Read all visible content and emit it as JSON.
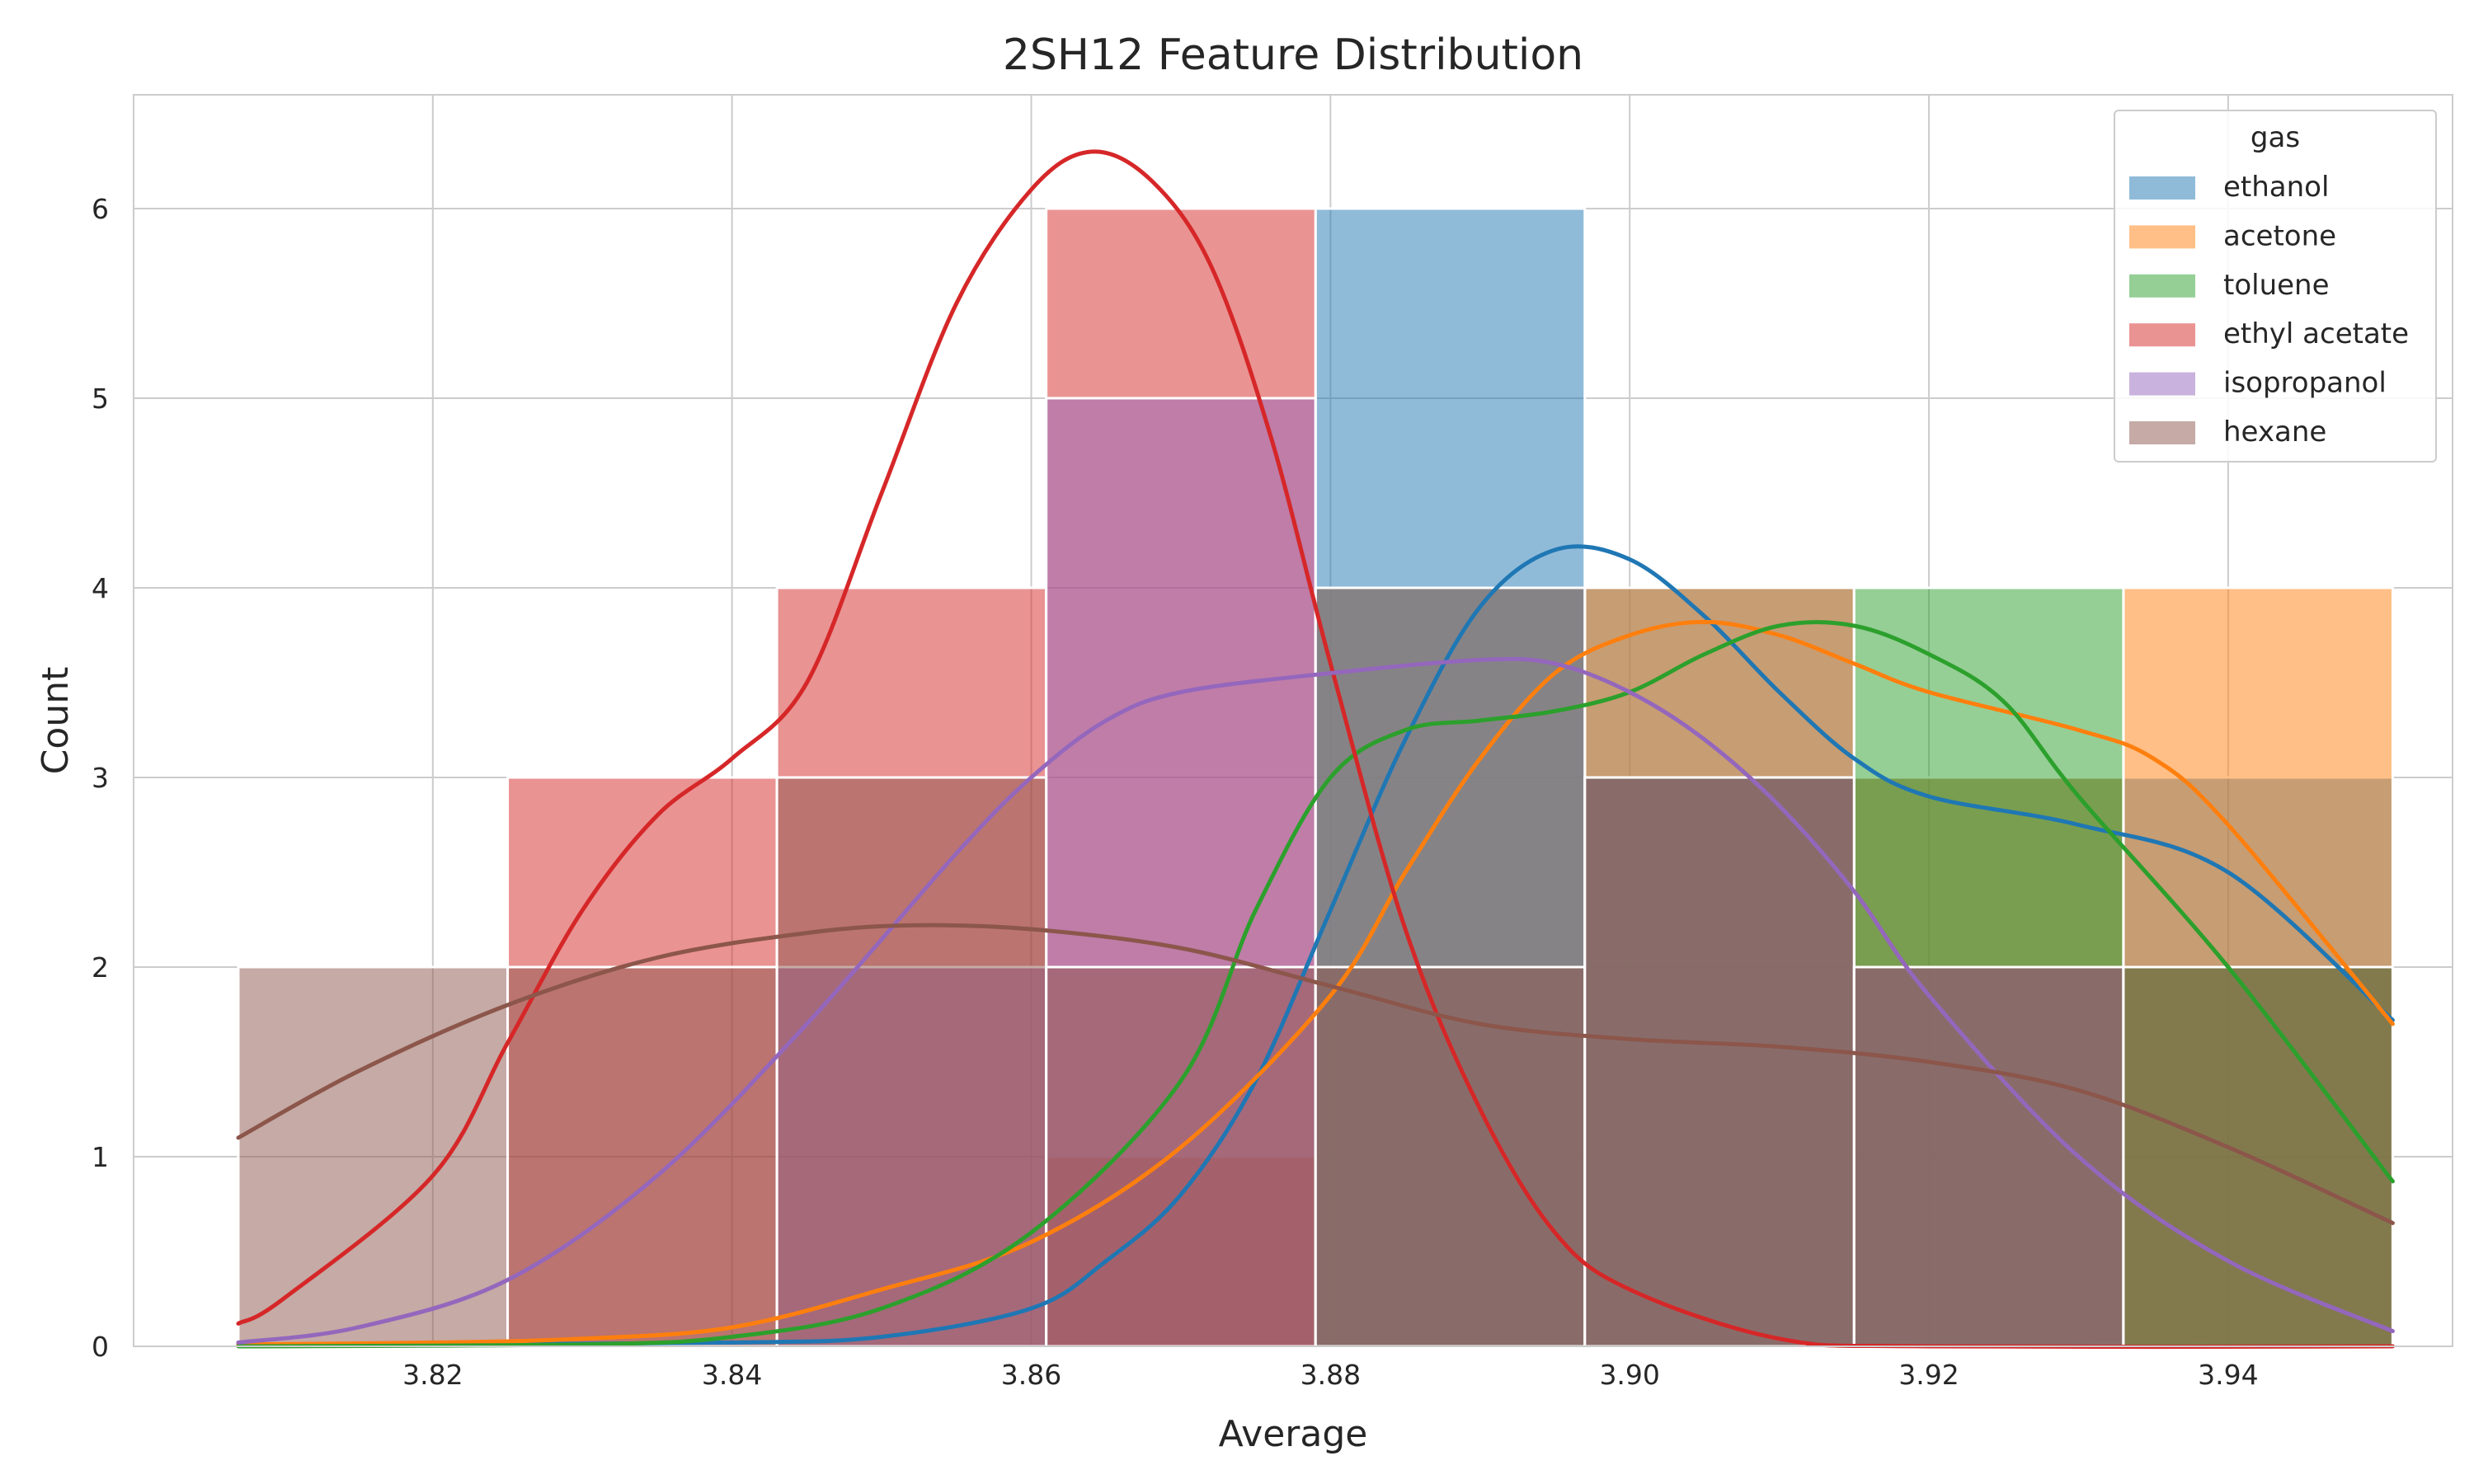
{
  "chart_data": {
    "type": "histogram",
    "title": "2SH12 Feature Distribution",
    "xlabel": "Average",
    "ylabel": "Count",
    "xlim": [
      3.8,
      3.955
    ],
    "ylim": [
      0,
      6.6
    ],
    "x_ticks": [
      "3.82",
      "3.84",
      "3.86",
      "3.88",
      "3.90",
      "3.92",
      "3.94"
    ],
    "y_ticks": [
      "0",
      "1",
      "2",
      "3",
      "4",
      "5",
      "6"
    ],
    "grid": true,
    "legend": {
      "title": "gas",
      "placement": "top-right"
    },
    "bin_edges": [
      3.807,
      3.825,
      3.843,
      3.861,
      3.879,
      3.897,
      3.915,
      3.933,
      3.951
    ],
    "series": [
      {
        "name": "ethanol",
        "color": "#1f77b4",
        "counts": [
          0,
          0,
          0,
          0,
          6,
          4,
          3,
          3
        ],
        "kde": [
          [
            3.807,
            0.01
          ],
          [
            3.82,
            0.01
          ],
          [
            3.84,
            0.02
          ],
          [
            3.85,
            0.05
          ],
          [
            3.86,
            0.2
          ],
          [
            3.865,
            0.45
          ],
          [
            3.87,
            0.8
          ],
          [
            3.875,
            1.4
          ],
          [
            3.88,
            2.3
          ],
          [
            3.885,
            3.2
          ],
          [
            3.89,
            3.9
          ],
          [
            3.895,
            4.2
          ],
          [
            3.9,
            4.15
          ],
          [
            3.905,
            3.85
          ],
          [
            3.91,
            3.45
          ],
          [
            3.915,
            3.1
          ],
          [
            3.92,
            2.9
          ],
          [
            3.93,
            2.75
          ],
          [
            3.94,
            2.5
          ],
          [
            3.951,
            1.72
          ]
        ]
      },
      {
        "name": "acetone",
        "color": "#ff7f0e",
        "counts": [
          0,
          0,
          0,
          1,
          4,
          4,
          3,
          4
        ],
        "kde": [
          [
            3.807,
            0.01
          ],
          [
            3.82,
            0.02
          ],
          [
            3.83,
            0.04
          ],
          [
            3.84,
            0.1
          ],
          [
            3.85,
            0.3
          ],
          [
            3.86,
            0.55
          ],
          [
            3.87,
            1.05
          ],
          [
            3.88,
            1.85
          ],
          [
            3.885,
            2.5
          ],
          [
            3.89,
            3.1
          ],
          [
            3.895,
            3.55
          ],
          [
            3.9,
            3.75
          ],
          [
            3.905,
            3.82
          ],
          [
            3.91,
            3.75
          ],
          [
            3.915,
            3.6
          ],
          [
            3.92,
            3.45
          ],
          [
            3.93,
            3.25
          ],
          [
            3.935,
            3.1
          ],
          [
            3.94,
            2.75
          ],
          [
            3.951,
            1.7
          ]
        ]
      },
      {
        "name": "toluene",
        "color": "#2ca02c",
        "counts": [
          0,
          0,
          0,
          0,
          4,
          3,
          4,
          2
        ],
        "kde": [
          [
            3.807,
            0.0
          ],
          [
            3.83,
            0.01
          ],
          [
            3.84,
            0.05
          ],
          [
            3.85,
            0.2
          ],
          [
            3.86,
            0.6
          ],
          [
            3.87,
            1.4
          ],
          [
            3.875,
            2.3
          ],
          [
            3.88,
            3.0
          ],
          [
            3.885,
            3.25
          ],
          [
            3.89,
            3.3
          ],
          [
            3.895,
            3.35
          ],
          [
            3.9,
            3.45
          ],
          [
            3.905,
            3.65
          ],
          [
            3.91,
            3.8
          ],
          [
            3.915,
            3.8
          ],
          [
            3.92,
            3.65
          ],
          [
            3.925,
            3.4
          ],
          [
            3.93,
            2.9
          ],
          [
            3.94,
            2.0
          ],
          [
            3.951,
            0.87
          ]
        ]
      },
      {
        "name": "ethyl acetate",
        "color": "#d62728",
        "counts": [
          0,
          3,
          4,
          6,
          0,
          0,
          0,
          0
        ],
        "kde": [
          [
            3.807,
            0.12
          ],
          [
            3.81,
            0.25
          ],
          [
            3.82,
            0.9
          ],
          [
            3.825,
            1.6
          ],
          [
            3.83,
            2.3
          ],
          [
            3.835,
            2.8
          ],
          [
            3.84,
            3.1
          ],
          [
            3.845,
            3.5
          ],
          [
            3.85,
            4.5
          ],
          [
            3.855,
            5.5
          ],
          [
            3.86,
            6.1
          ],
          [
            3.864,
            6.3
          ],
          [
            3.868,
            6.15
          ],
          [
            3.872,
            5.7
          ],
          [
            3.876,
            4.8
          ],
          [
            3.88,
            3.6
          ],
          [
            3.885,
            2.2
          ],
          [
            3.89,
            1.25
          ],
          [
            3.895,
            0.6
          ],
          [
            3.9,
            0.3
          ],
          [
            3.91,
            0.04
          ],
          [
            3.92,
            0.0
          ],
          [
            3.951,
            0.0
          ]
        ]
      },
      {
        "name": "isopropanol",
        "color": "#9467bd",
        "counts": [
          0,
          0,
          2,
          5,
          4,
          3,
          2,
          0
        ],
        "kde": [
          [
            3.807,
            0.02
          ],
          [
            3.815,
            0.1
          ],
          [
            3.825,
            0.35
          ],
          [
            3.835,
            0.9
          ],
          [
            3.845,
            1.7
          ],
          [
            3.855,
            2.6
          ],
          [
            3.86,
            3.0
          ],
          [
            3.865,
            3.3
          ],
          [
            3.87,
            3.45
          ],
          [
            3.88,
            3.55
          ],
          [
            3.89,
            3.62
          ],
          [
            3.895,
            3.6
          ],
          [
            3.9,
            3.45
          ],
          [
            3.905,
            3.2
          ],
          [
            3.91,
            2.85
          ],
          [
            3.915,
            2.4
          ],
          [
            3.92,
            1.85
          ],
          [
            3.93,
            1.0
          ],
          [
            3.94,
            0.45
          ],
          [
            3.951,
            0.08
          ]
        ]
      },
      {
        "name": "hexane",
        "color": "#8c564b",
        "counts": [
          2,
          2,
          3,
          2,
          2,
          3,
          2,
          2
        ],
        "kde": [
          [
            3.807,
            1.1
          ],
          [
            3.815,
            1.45
          ],
          [
            3.825,
            1.8
          ],
          [
            3.835,
            2.05
          ],
          [
            3.845,
            2.18
          ],
          [
            3.852,
            2.22
          ],
          [
            3.86,
            2.2
          ],
          [
            3.87,
            2.1
          ],
          [
            3.88,
            1.9
          ],
          [
            3.89,
            1.7
          ],
          [
            3.9,
            1.62
          ],
          [
            3.91,
            1.58
          ],
          [
            3.92,
            1.5
          ],
          [
            3.93,
            1.35
          ],
          [
            3.94,
            1.05
          ],
          [
            3.951,
            0.65
          ]
        ]
      }
    ]
  }
}
